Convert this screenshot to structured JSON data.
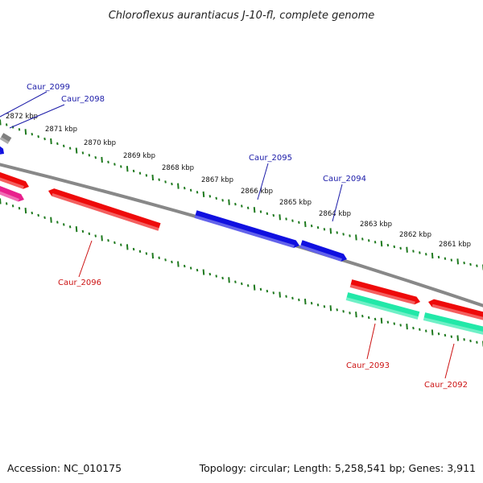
{
  "title": "Chloroflexus aurantiacus J-10-fl, complete genome",
  "footer": {
    "accession": "Accession: NC_010175",
    "summary": "Topology: circular; Length: 5,258,541 bp; Genes: 3,911"
  },
  "colors": {
    "backbone": "#888888",
    "ticks": "#1f7a1f",
    "blue_label": "#1a1aa8",
    "red_label": "#cc1111",
    "gene_blue": "#1010e0",
    "gene_red": "#ee0a0a",
    "gene_teal": "#22e8a8",
    "gene_pink": "#e8208c",
    "gene_gray": "#808080"
  },
  "kbp_labels": [
    "2872 kbp",
    "2871 kbp",
    "2870 kbp",
    "2869 kbp",
    "2868 kbp",
    "2867 kbp",
    "2866 kbp",
    "2865 kbp",
    "2864 kbp",
    "2863 kbp",
    "2862 kbp",
    "2861 kbp"
  ],
  "genes": [
    {
      "id": "Caur_2099",
      "color": "#1010e0",
      "label_color": "#1a1aa8"
    },
    {
      "id": "Caur_2098",
      "color": "#808080",
      "label_color": "#1a1aa8"
    },
    {
      "id": "Caur_2095",
      "color": "#1010e0",
      "label_color": "#1a1aa8"
    },
    {
      "id": "Caur_2094",
      "color": "#1010e0",
      "label_color": "#1a1aa8"
    },
    {
      "id": "Caur_2096",
      "color": "#ee0a0a",
      "label_color": "#cc1111"
    },
    {
      "id": "Caur_2093",
      "color": "#22e8a8",
      "label_color": "#cc1111"
    },
    {
      "id": "Caur_2092",
      "color": "#22e8a8",
      "label_color": "#cc1111"
    }
  ]
}
